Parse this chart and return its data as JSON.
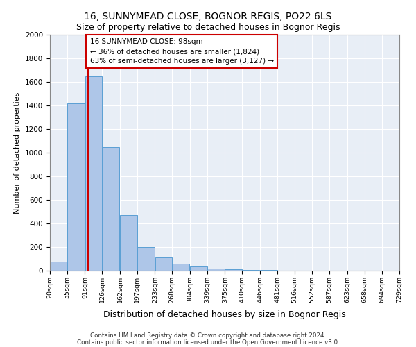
{
  "title": "16, SUNNYMEAD CLOSE, BOGNOR REGIS, PO22 6LS",
  "subtitle": "Size of property relative to detached houses in Bognor Regis",
  "xlabel": "Distribution of detached houses by size in Bognor Regis",
  "ylabel": "Number of detached properties",
  "footer_line1": "Contains HM Land Registry data © Crown copyright and database right 2024.",
  "footer_line2": "Contains public sector information licensed under the Open Government Licence v3.0.",
  "annotation_line1": "16 SUNNYMEAD CLOSE: 98sqm",
  "annotation_line2": "← 36% of detached houses are smaller (1,824)",
  "annotation_line3": "63% of semi-detached houses are larger (3,127) →",
  "property_size": 98,
  "bar_bins": [
    20,
    55,
    91,
    126,
    162,
    197,
    233,
    268,
    304,
    339,
    375,
    410,
    446,
    481,
    516,
    552,
    587,
    623,
    658,
    694,
    729
  ],
  "bar_heights": [
    75,
    1420,
    1650,
    1050,
    470,
    200,
    110,
    60,
    35,
    20,
    10,
    5,
    5,
    0,
    0,
    0,
    0,
    0,
    0,
    0
  ],
  "bar_color": "#aec6e8",
  "bar_edge_color": "#5a9fd4",
  "vline_color": "#cc0000",
  "annotation_box_color": "#cc0000",
  "background_color": "#e8eef6",
  "grid_color": "#ffffff",
  "ylim": [
    0,
    2000
  ],
  "yticks": [
    0,
    200,
    400,
    600,
    800,
    1000,
    1200,
    1400,
    1600,
    1800,
    2000
  ],
  "title_fontsize": 10,
  "subtitle_fontsize": 9,
  "ylabel_fontsize": 8,
  "xlabel_fontsize": 9
}
